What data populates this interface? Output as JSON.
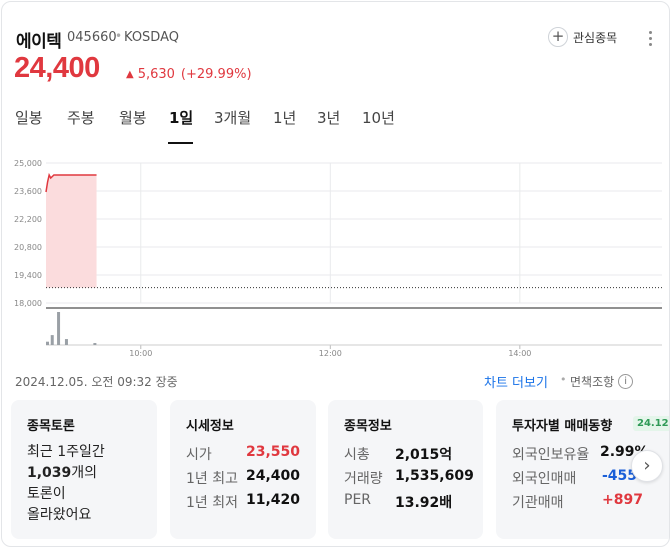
{
  "stock": {
    "name": "에이텍",
    "code": "045660",
    "separator": "•",
    "market": "KOSDAQ",
    "price": "24,400",
    "change_arrow": "▲",
    "change": "5,630",
    "change_pct": "(+29.99%)"
  },
  "header": {
    "watch_plus": "+",
    "watch_label": "관심종목"
  },
  "tabs": [
    "일봉",
    "주봉",
    "월봉",
    "1일",
    "3개월",
    "1년",
    "3년",
    "10년"
  ],
  "active_tab": "1일",
  "chart_data": {
    "type": "area",
    "y_ticks": [
      "25,000",
      "23,600",
      "22,200",
      "20,800",
      "19,400",
      "18,000"
    ],
    "ylim": [
      18000,
      25000
    ],
    "x_ticks": [
      "10:00",
      "12:00",
      "14:00"
    ],
    "previous_close": 18770,
    "series": [
      {
        "values": [
          {
            "time": "09:00",
            "price": 23550
          },
          {
            "time": "09:01",
            "price": 24050
          },
          {
            "time": "09:02",
            "price": 24400
          },
          {
            "time": "09:03",
            "price": 24250
          },
          {
            "time": "09:05",
            "price": 24400
          },
          {
            "time": "09:15",
            "price": 24400
          },
          {
            "time": "09:32",
            "price": 24400
          }
        ]
      }
    ],
    "volume": [
      {
        "time": "09:00",
        "level": 0.1
      },
      {
        "time": "09:03",
        "level": 0.3
      },
      {
        "time": "09:07",
        "level": 1.0
      },
      {
        "time": "09:12",
        "level": 0.18
      },
      {
        "time": "09:30",
        "level": 0.06
      }
    ],
    "grid": true,
    "colors": {
      "line": "#e0383f",
      "fill": "#fbdcdd",
      "grid": "#e9eaec",
      "volume": "#9aa0a6"
    }
  },
  "footer": {
    "datetime": "2024.12.05. 오전 09:32 장중",
    "chart_more": "차트 더보기",
    "dot": "•",
    "disclaimer": "면책조항",
    "info_icon": "i"
  },
  "forum": {
    "title": "종목토론",
    "line1": "최근 1주일간",
    "count": "1,039",
    "line2_suffix": "개의",
    "line3": "토론이",
    "line4": "올라왔어요"
  },
  "price_info": {
    "title": "시세정보",
    "rows": [
      {
        "label": "시가",
        "value": "23,550"
      },
      {
        "label": "1년 최고",
        "value": "24,400"
      },
      {
        "label": "1년 최저",
        "value": "11,420"
      }
    ]
  },
  "stock_info": {
    "title": "종목정보",
    "rows": [
      {
        "label": "시총",
        "value": "2,015억"
      },
      {
        "label": "거래량",
        "value": "1,535,609"
      },
      {
        "label": "PER",
        "value": "13.92배"
      }
    ]
  },
  "investor": {
    "title": "투자자별 매매동향",
    "date_badge": "24.12.",
    "rows": [
      {
        "label": "외국인보유율",
        "value": "2.99%"
      },
      {
        "label": "외국인매매",
        "value": "-455"
      },
      {
        "label": "기관매매",
        "value": "+897"
      }
    ],
    "next_arrow": "›"
  }
}
